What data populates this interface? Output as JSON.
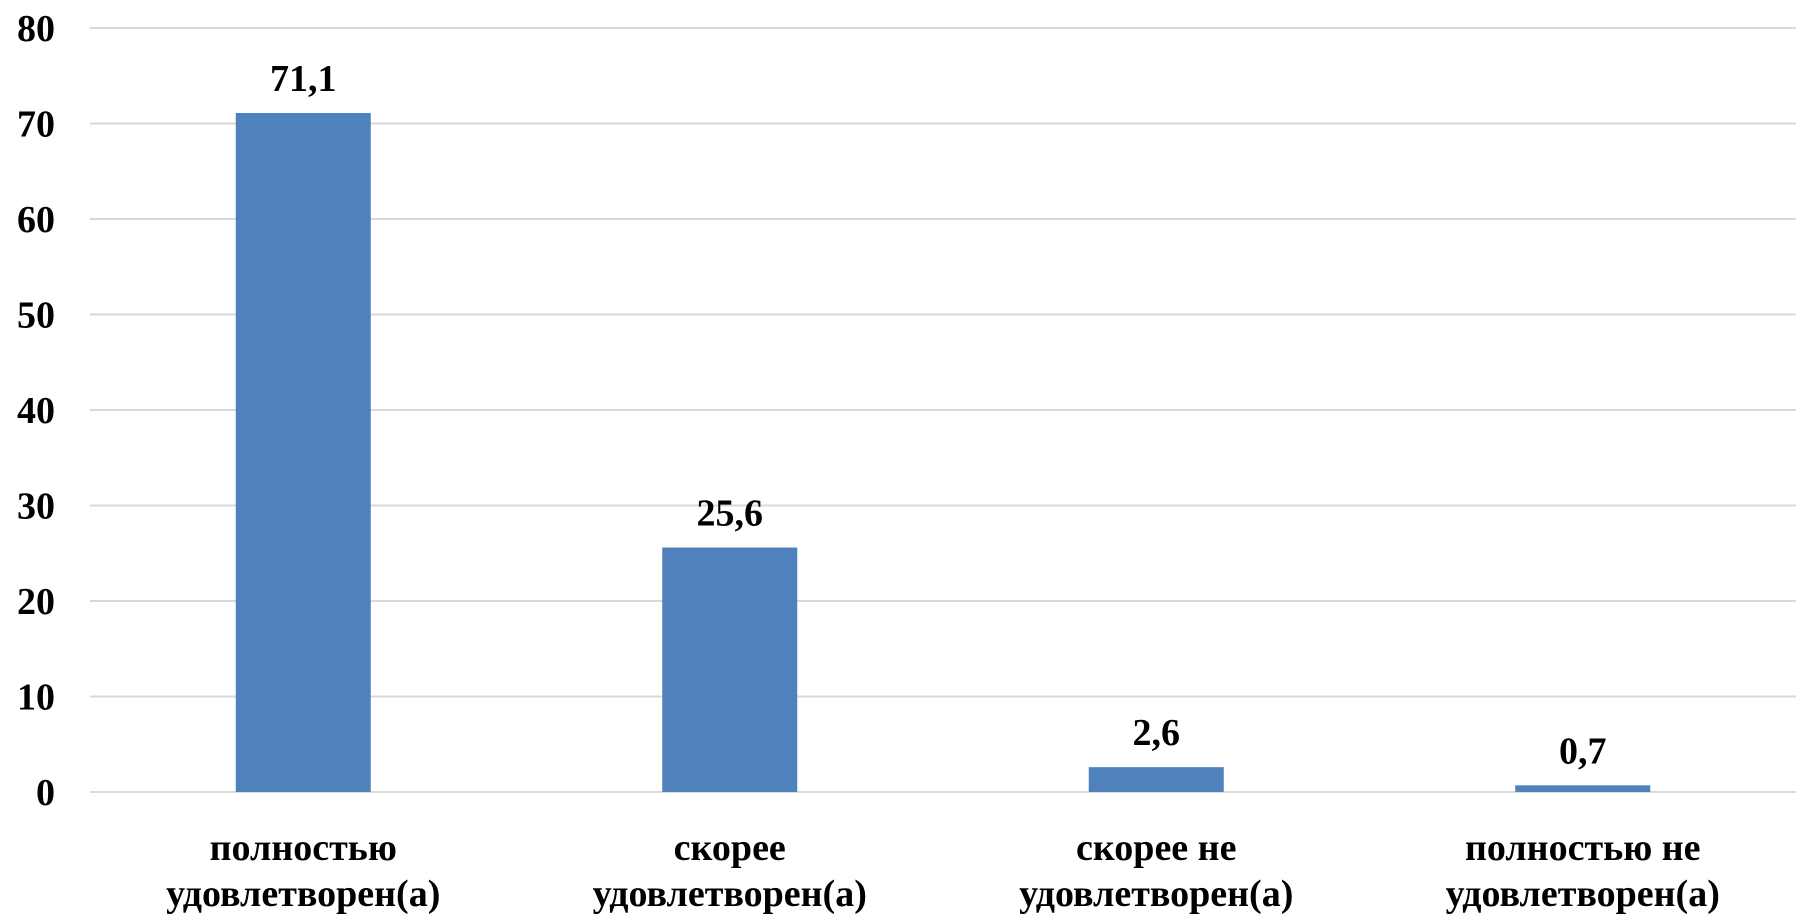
{
  "chart_data": {
    "type": "bar",
    "categories": [
      [
        "полностью",
        "удовлетворен(а)"
      ],
      [
        "скорее",
        "удовлетворен(а)"
      ],
      [
        "скорее не",
        "удовлетворен(а)"
      ],
      [
        "полностью не",
        "удовлетворен(а)"
      ]
    ],
    "values": [
      71.1,
      25.6,
      2.6,
      0.7
    ],
    "data_labels": [
      "71,1",
      "25,6",
      "2,6",
      "0,7"
    ],
    "ylim": [
      0,
      80
    ],
    "yticks": [
      0,
      10,
      20,
      30,
      40,
      50,
      60,
      70,
      80
    ],
    "grid": true,
    "bar_color": "#4f81bd",
    "legend": "none"
  }
}
